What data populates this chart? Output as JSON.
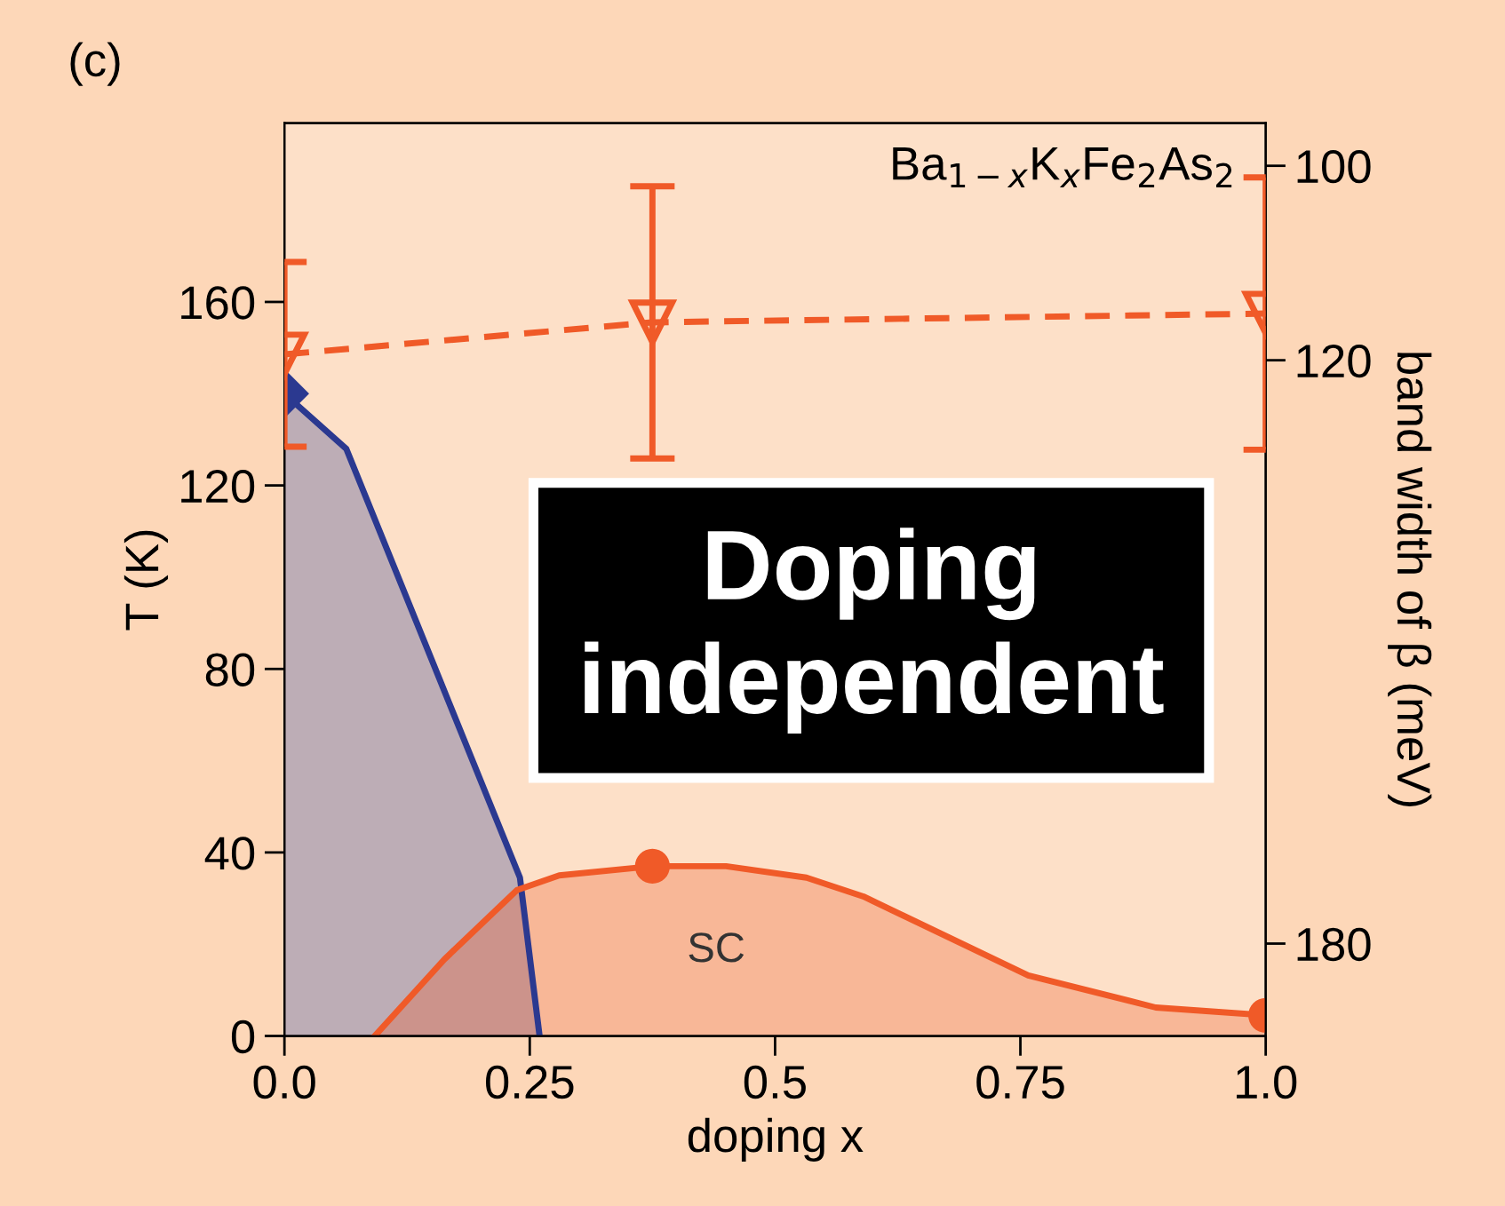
{
  "chart_data": {
    "type": "line",
    "xlabel": "doping x",
    "ylabel": "T (K)",
    "y2label": "band width of β (meV)",
    "xlim": [
      0,
      1
    ],
    "xticks": [
      {
        "value": 0,
        "label": "0.0"
      },
      0.25,
      0.5,
      0.75,
      {
        "value": 1,
        "label": "1.0"
      }
    ],
    "ylim": [
      0,
      199
    ],
    "yticks": [
      0,
      40,
      80,
      120,
      160
    ],
    "y2lim": [
      189.5,
      95.6
    ],
    "y2ticks": [
      100,
      120,
      180
    ],
    "series": [
      {
        "type": "area",
        "color": "#2b3990",
        "x": [
          0,
          0.063,
          0.24,
          0.26
        ],
        "values": [
          140,
          128,
          34.5,
          0
        ],
        "line_style": "solid",
        "marker": "none"
      },
      {
        "type": "area",
        "color": "#f05a28",
        "x": [
          0.092,
          0.163,
          0.237,
          0.28,
          0.375,
          0.45,
          0.532,
          0.59,
          0.758,
          0.888,
          1.0
        ],
        "values": [
          0,
          16.7,
          31.8,
          35,
          37,
          37,
          34.5,
          30.4,
          13.2,
          6.2,
          4.5
        ],
        "line_style": "solid",
        "marker": "none"
      },
      {
        "type": "scatter",
        "color": "#2b3990",
        "x": [
          0
        ],
        "values": [
          140
        ],
        "marker": "diamond"
      },
      {
        "type": "scatter",
        "color": "#f05a28",
        "x": [
          0.375,
          1.0
        ],
        "values": [
          37,
          4.5
        ],
        "marker": "circle"
      },
      {
        "axis": "y2",
        "color": "#f05a28",
        "x": [
          0,
          0.375,
          1.0
        ],
        "values": [
          119.4,
          116.1,
          115.2
        ],
        "errors": [
          9.5,
          14,
          14
        ],
        "line_style": "dashed",
        "marker": "triangle"
      }
    ],
    "annotations": [
      "(c)",
      "Ba$_{1−x}$K$_{x}$Fe$_{2}$As$_{2}$",
      "Doping\nindependent",
      "SC"
    ],
    "grid": false,
    "legend": false
  }
}
